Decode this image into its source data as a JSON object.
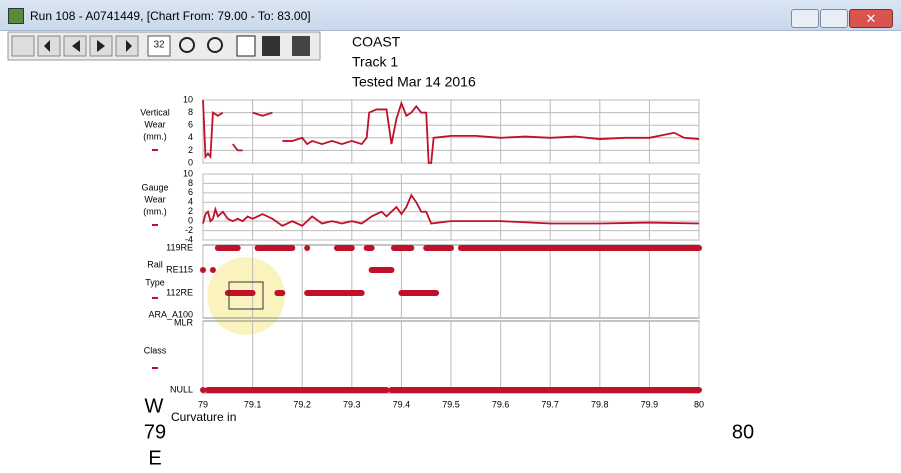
{
  "window": {
    "title": "Run 108 - A0741449, [Chart From: 79.00 - To: 83.00]"
  },
  "toolbar": {
    "zoom_label": "32"
  },
  "header": {
    "lines": [
      "COAST",
      "Track 1",
      "Tested Mar 14 2016"
    ]
  },
  "footer": {
    "direction_top": "W",
    "start": "79",
    "direction_bottom": "E",
    "curvature": "Curvature in",
    "end": "80"
  },
  "chart_data": [
    {
      "type": "line",
      "label_lines": [
        "Vertical",
        "Wear",
        "(mm.)"
      ],
      "color": "#c0102a",
      "xlim": [
        79,
        80
      ],
      "ylim": [
        0,
        10
      ],
      "yticks": [
        0,
        2,
        4,
        6,
        8,
        10
      ],
      "x": [
        79.0,
        79.005,
        79.01,
        79.015,
        79.02,
        79.03,
        79.04,
        79.05,
        79.06,
        79.07,
        79.08,
        79.09,
        79.1,
        79.12,
        79.14,
        79.15,
        79.16,
        79.18,
        79.2,
        79.21,
        79.22,
        79.24,
        79.26,
        79.28,
        79.3,
        79.32,
        79.33,
        79.335,
        79.35,
        79.37,
        79.38,
        79.39,
        79.4,
        79.41,
        79.42,
        79.43,
        79.44,
        79.45,
        79.455,
        79.46,
        79.465,
        79.5,
        79.55,
        79.6,
        79.65,
        79.7,
        79.75,
        79.8,
        79.85,
        79.9,
        79.95,
        79.97,
        80.0
      ],
      "values": [
        10,
        1,
        1.5,
        1,
        8,
        7.5,
        8,
        null,
        3,
        2,
        2,
        null,
        8,
        7.5,
        8,
        null,
        3.5,
        3.5,
        4,
        3,
        3.5,
        3,
        3.5,
        3,
        3.5,
        3,
        4,
        8,
        8.5,
        8.5,
        3,
        7,
        9.5,
        7.5,
        8,
        9,
        8,
        8,
        0,
        0,
        4,
        4.3,
        4.3,
        4,
        4.2,
        4,
        4.2,
        3.8,
        4,
        4,
        4.8,
        4,
        3.8
      ]
    },
    {
      "type": "line",
      "label_lines": [
        "Gauge",
        "Wear",
        "(mm.)"
      ],
      "color": "#c0102a",
      "xlim": [
        79,
        80
      ],
      "ylim": [
        -4,
        10
      ],
      "yticks": [
        -4,
        -2,
        0,
        2,
        4,
        6,
        8,
        10
      ],
      "x": [
        79.0,
        79.005,
        79.01,
        79.015,
        79.02,
        79.025,
        79.03,
        79.04,
        79.05,
        79.06,
        79.07,
        79.08,
        79.09,
        79.1,
        79.12,
        79.14,
        79.16,
        79.18,
        79.2,
        79.22,
        79.24,
        79.26,
        79.28,
        79.3,
        79.32,
        79.34,
        79.36,
        79.37,
        79.38,
        79.39,
        79.4,
        79.41,
        79.42,
        79.43,
        79.44,
        79.45,
        79.46,
        79.5,
        79.6,
        79.7,
        79.8,
        79.9,
        80.0
      ],
      "values": [
        -0.5,
        1.5,
        2,
        0,
        0.5,
        2.5,
        1,
        2,
        0.5,
        0,
        0.5,
        0,
        1,
        0.5,
        1.5,
        0.5,
        -1,
        0,
        -1,
        1,
        -0.5,
        0,
        -0.5,
        0,
        -0.5,
        1,
        2,
        1,
        2,
        3,
        1.5,
        3,
        5.5,
        4,
        2,
        2,
        -0.5,
        0,
        0,
        -0.5,
        -0.5,
        -0.3,
        -0.5
      ]
    },
    {
      "type": "strip",
      "label_lines": [
        "Rail",
        "Type"
      ],
      "color": "#c0102a",
      "xlim": [
        79,
        80
      ],
      "categories": [
        "119RE",
        "RE115",
        "112RE",
        "ARA_A100"
      ],
      "ranges": [
        [
          [
            79.03,
            79.07
          ],
          [
            79.11,
            79.18
          ],
          [
            79.21,
            79.21
          ],
          [
            79.27,
            79.3
          ],
          [
            79.33,
            79.34
          ],
          [
            79.385,
            79.42
          ],
          [
            79.45,
            79.5
          ],
          [
            79.52,
            80.0
          ]
        ],
        [
          [
            79.0,
            79.0
          ],
          [
            79.02,
            79.02
          ],
          [
            79.34,
            79.38
          ]
        ],
        [
          [
            79.05,
            79.1
          ],
          [
            79.15,
            79.16
          ],
          [
            79.21,
            79.32
          ],
          [
            79.4,
            79.47
          ]
        ],
        []
      ]
    },
    {
      "type": "strip",
      "label_lines": [
        "Class"
      ],
      "color": "#c0102a",
      "xlim": [
        79,
        80
      ],
      "categories": [
        "MLR",
        "NULL"
      ],
      "ranges": [
        [],
        [
          [
            79.0,
            79.0
          ],
          [
            79.01,
            79.37
          ],
          [
            79.38,
            80.0
          ]
        ]
      ],
      "xticks": [
        79,
        79.1,
        79.2,
        79.3,
        79.4,
        79.5,
        79.6,
        79.7,
        79.8,
        79.9,
        80
      ]
    }
  ]
}
